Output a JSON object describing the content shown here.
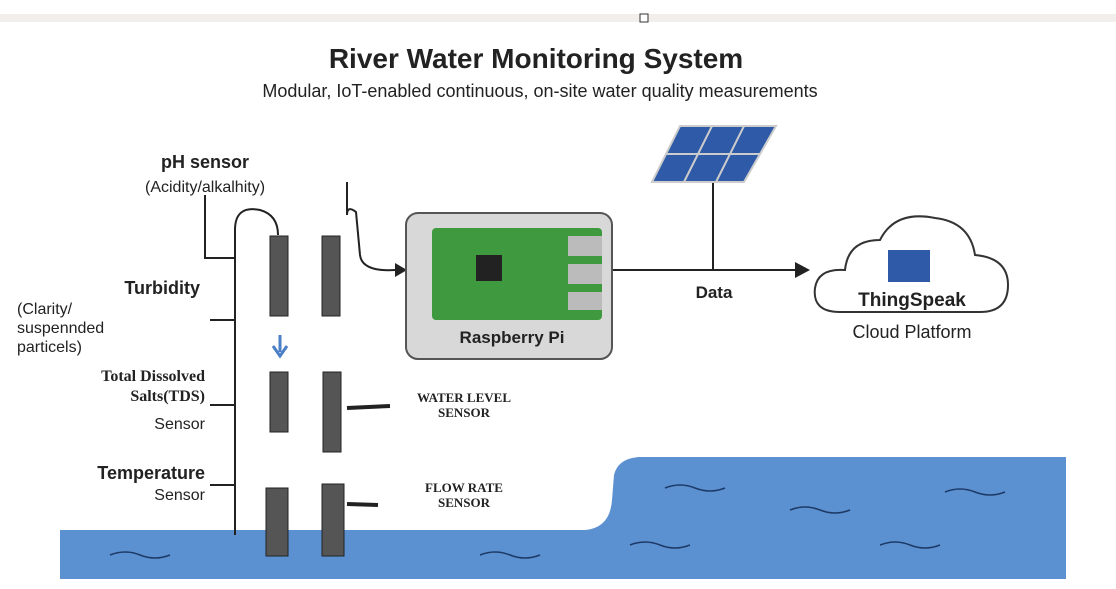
{
  "header": {
    "title": "River Water Monitoring System",
    "subtitle": "Modular, IoT-enabled continuous, on-site water quality measurements"
  },
  "sensors": [
    {
      "name": "pH sensor",
      "detail": [
        "(Acidity/alkalhity)"
      ]
    },
    {
      "name": "Turbidity",
      "detail": [
        "(Clarity/",
        "suspennded",
        "particels)"
      ]
    },
    {
      "name": "Total Dissolved",
      "detail": [
        "Salts(TDS)",
        "Sensor"
      ]
    },
    {
      "name": "Temperature",
      "detail": [
        "Sensor"
      ]
    }
  ],
  "probes": [
    {
      "lines": [
        "WATER LEVEL",
        "SENSOR"
      ]
    },
    {
      "lines": [
        "FLOW RATE",
        "SENSOR"
      ]
    }
  ],
  "controller": "Raspberry Pi",
  "link": "Data",
  "cloud": {
    "name": "ThingSpeak",
    "caption": "Cloud Platform"
  }
}
